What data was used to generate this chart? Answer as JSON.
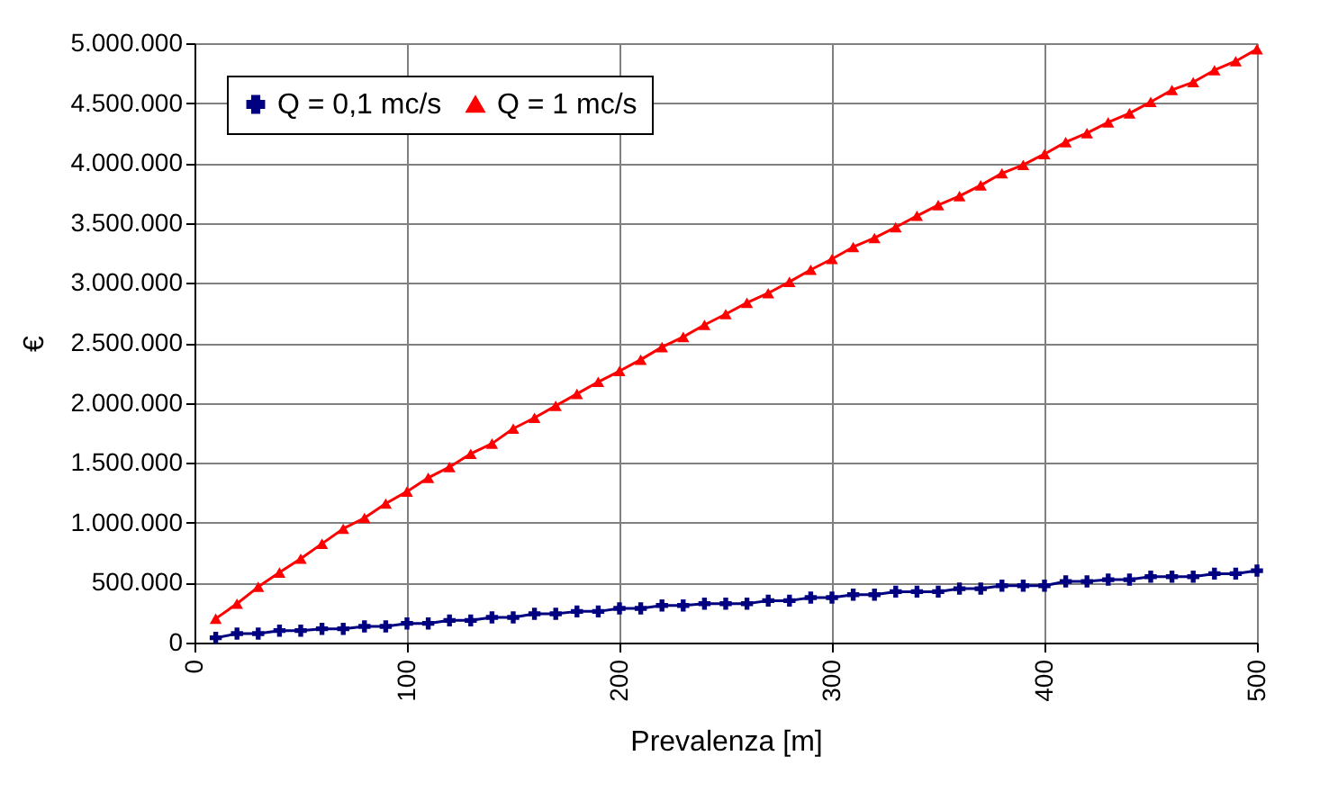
{
  "chart_data": {
    "type": "line",
    "xlabel": "Prevalenza [m]",
    "ylabel": "€",
    "x": [
      10,
      20,
      30,
      40,
      50,
      60,
      70,
      80,
      90,
      100,
      110,
      120,
      130,
      140,
      150,
      160,
      170,
      180,
      190,
      200,
      210,
      220,
      230,
      240,
      250,
      260,
      270,
      280,
      290,
      300,
      310,
      320,
      330,
      340,
      350,
      360,
      370,
      380,
      390,
      400,
      410,
      420,
      430,
      440,
      450,
      460,
      470,
      480,
      490,
      500
    ],
    "series": [
      {
        "name": "Q = 0,1 mc/s",
        "color": "#000080",
        "marker": "cross",
        "values": [
          40000,
          75000,
          75000,
          100000,
          100000,
          115000,
          115000,
          135000,
          135000,
          160000,
          160000,
          185000,
          185000,
          210000,
          210000,
          240000,
          240000,
          260000,
          260000,
          285000,
          285000,
          310000,
          310000,
          325000,
          325000,
          325000,
          350000,
          350000,
          375000,
          375000,
          400000,
          400000,
          425000,
          425000,
          425000,
          450000,
          450000,
          475000,
          475000,
          475000,
          510000,
          510000,
          525000,
          525000,
          550000,
          550000,
          550000,
          575000,
          575000,
          600000
        ]
      },
      {
        "name": "Q = 1 mc/s",
        "color": "#ff0000",
        "marker": "triangle",
        "values": [
          200000,
          325000,
          465000,
          585000,
          700000,
          825000,
          950000,
          1040000,
          1160000,
          1260000,
          1375000,
          1465000,
          1575000,
          1660000,
          1785000,
          1875000,
          1975000,
          2075000,
          2175000,
          2265000,
          2360000,
          2465000,
          2550000,
          2650000,
          2740000,
          2835000,
          2915000,
          3010000,
          3110000,
          3200000,
          3300000,
          3375000,
          3465000,
          3560000,
          3650000,
          3725000,
          3815000,
          3915000,
          3985000,
          4075000,
          4175000,
          4250000,
          4340000,
          4415000,
          4510000,
          4610000,
          4675000,
          4775000,
          4850000,
          4950000
        ]
      }
    ],
    "xlim": [
      0,
      500
    ],
    "xticks": [
      0,
      100,
      200,
      300,
      400,
      500
    ],
    "ylim": [
      0,
      5000000
    ],
    "yticks": [
      0,
      {
        "value": 500000,
        "label": "500.000"
      },
      {
        "value": 1000000,
        "label": "1.000.000"
      },
      {
        "value": 1500000,
        "label": "1.500.000"
      },
      {
        "value": 2000000,
        "label": "2.000.000"
      },
      {
        "value": 2500000,
        "label": "2.500.000"
      },
      {
        "value": 3000000,
        "label": "3.000.000"
      },
      {
        "value": 3500000,
        "label": "3.500.000"
      },
      {
        "value": 4000000,
        "label": "4.000.000"
      },
      {
        "value": 4500000,
        "label": "4.500.000"
      },
      {
        "value": 5000000,
        "label": "5.000.000"
      }
    ],
    "grid": true,
    "legend": "top left",
    "line_style": "solid"
  }
}
